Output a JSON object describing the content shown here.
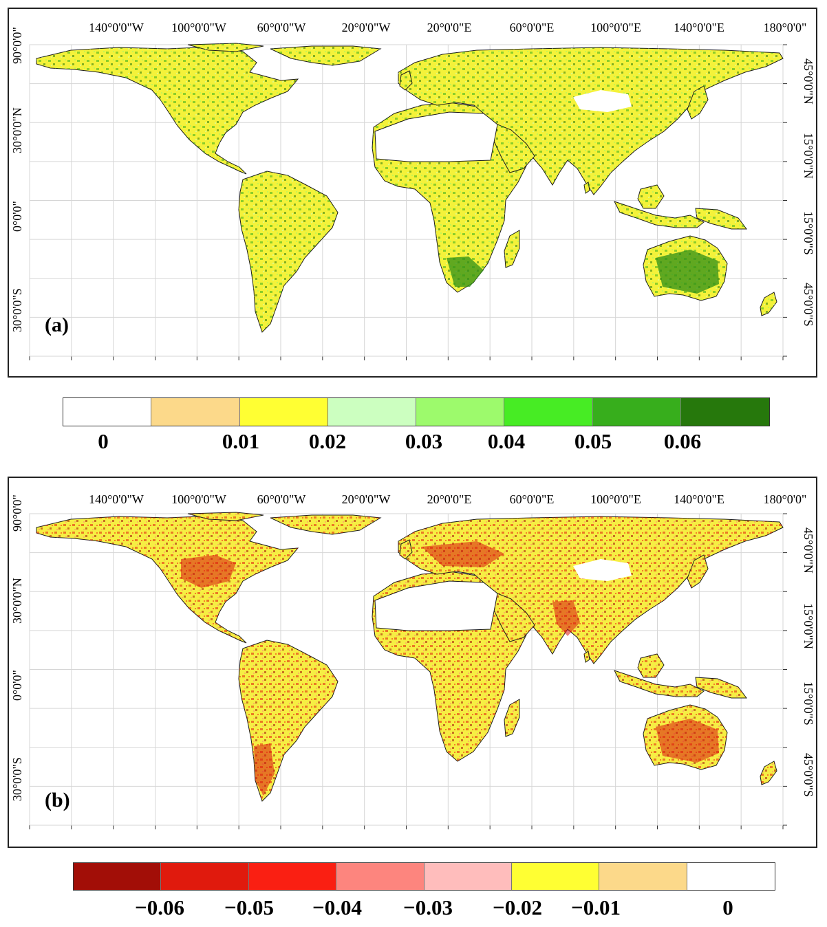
{
  "axes": {
    "top_labels": [
      "140°0'0\"W",
      "100°0'0\"W",
      "60°0'0\"W",
      "20°0'0\"W",
      "20°0'0\"E",
      "60°0'0\"E",
      "100°0'0\"E",
      "140°0'0\"E",
      "180°0'0\""
    ],
    "left_labels": [
      "90°0'0\"",
      "30°0'0\"N",
      "0°0'0\"",
      "30°0'0\"S"
    ],
    "right_labels": [
      "45°0'0\"N",
      "15°0'0\"N",
      "15°0'0\"S",
      "45°0'0\"S"
    ]
  },
  "panels": [
    {
      "tag": "(a)"
    },
    {
      "tag": "(b)"
    }
  ],
  "legend_a": {
    "colors": [
      "#ffffff",
      "#fcd98a",
      "#ffff33",
      "#ccffc0",
      "#9dfa6c",
      "#47ec24",
      "#37ae1c",
      "#26780c"
    ],
    "labels": [
      "0",
      "0.01",
      "0.02",
      "0.03",
      "0.04",
      "0.05",
      "0.06"
    ]
  },
  "legend_b": {
    "colors": [
      "#a20e07",
      "#e01a0d",
      "#fa1f12",
      "#fd857e",
      "#ffbdbc",
      "#ffff33",
      "#fcd98a",
      "#ffffff"
    ],
    "labels": [
      "−0.06",
      "−0.05",
      "−0.04",
      "−0.03",
      "−0.02",
      "−0.01",
      "0"
    ]
  },
  "colors": {
    "a_base": "#f4f23a",
    "a_dots": [
      "#26780c",
      "#37ae1c",
      "#47ec24",
      "#9dfa6c",
      "#ccffc0",
      "#fcd98a"
    ],
    "b_base": "#f6ee43",
    "b_dots": [
      "#a20e07",
      "#e01a0d",
      "#fa1f12",
      "#fd857e",
      "#ffbdbc",
      "#fcd98a"
    ]
  }
}
